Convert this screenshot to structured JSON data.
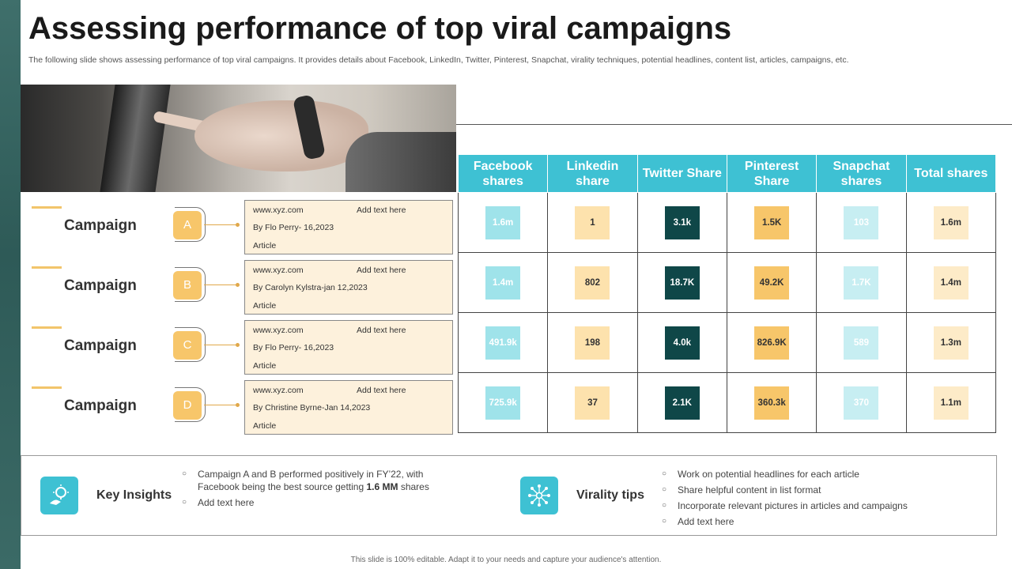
{
  "title": "Assessing performance of top viral campaigns",
  "subtitle": "The following slide shows assessing performance of top viral campaigns. It provides details about Facebook, LinkedIn, Twitter, Pinterest, Snapchat, virality techniques, potential headlines, content list, articles, campaigns, etc.",
  "campaigns": [
    {
      "label": "Campaign",
      "badge": "A",
      "url": "www.xyz.com",
      "add_text": "Add text here",
      "byline": "By Flo Perry- 16,2023",
      "type": "Article"
    },
    {
      "label": "Campaign",
      "badge": "B",
      "url": "www.xyz.com",
      "add_text": "Add text here",
      "byline": "By Carolyn Kylstra-jan 12,2023",
      "type": "Article"
    },
    {
      "label": "Campaign",
      "badge": "C",
      "url": "www.xyz.com",
      "add_text": "Add text here",
      "byline": "By Flo Perry- 16,2023",
      "type": "Article"
    },
    {
      "label": "Campaign",
      "badge": "D",
      "url": "www.xyz.com",
      "add_text": "Add text here",
      "byline": "By Christine Byrne-Jan 14,2023",
      "type": "Article"
    }
  ],
  "table": {
    "headers": [
      "Facebook shares",
      "Linkedin share",
      "Twitter Share",
      "Pinterest Share",
      "Snapchat shares",
      "Total shares"
    ],
    "rows": [
      [
        "1.6m",
        "1",
        "3.1k",
        "1.5K",
        "103",
        "1.6m"
      ],
      [
        "1.4m",
        "802",
        "18.7K",
        "49.2K",
        "1.7K",
        "1.4m"
      ],
      [
        "491.9k",
        "198",
        "4.0k",
        "826.9K",
        "589",
        "1.3m"
      ],
      [
        "725.9k",
        "37",
        "2.1K",
        "360.3k",
        "370",
        "1.1m"
      ]
    ]
  },
  "insights": {
    "label": "Key Insights",
    "icon": "lightbulb-hand-icon",
    "bullets": [
      {
        "pre": "Campaign A and B performed  positively in FY’22, with Facebook being the best source getting ",
        "bold": "1.6 MM",
        "post": " shares"
      },
      {
        "pre": "Add text here",
        "bold": "",
        "post": ""
      }
    ]
  },
  "virality": {
    "label": "Virality tips",
    "icon": "network-icon",
    "bullets": [
      "Work on potential headlines for each article",
      "Share helpful content in list format",
      "Incorporate  relevant  pictures  in articles and campaigns",
      "Add text here"
    ]
  },
  "footer": "This slide is 100% editable.  Adapt it to your needs and capture your audience's attention.",
  "colors": {
    "accent_teal": "#3ec1d3",
    "accent_yellow": "#f7c66a",
    "dark_teal": "#0f4748"
  }
}
